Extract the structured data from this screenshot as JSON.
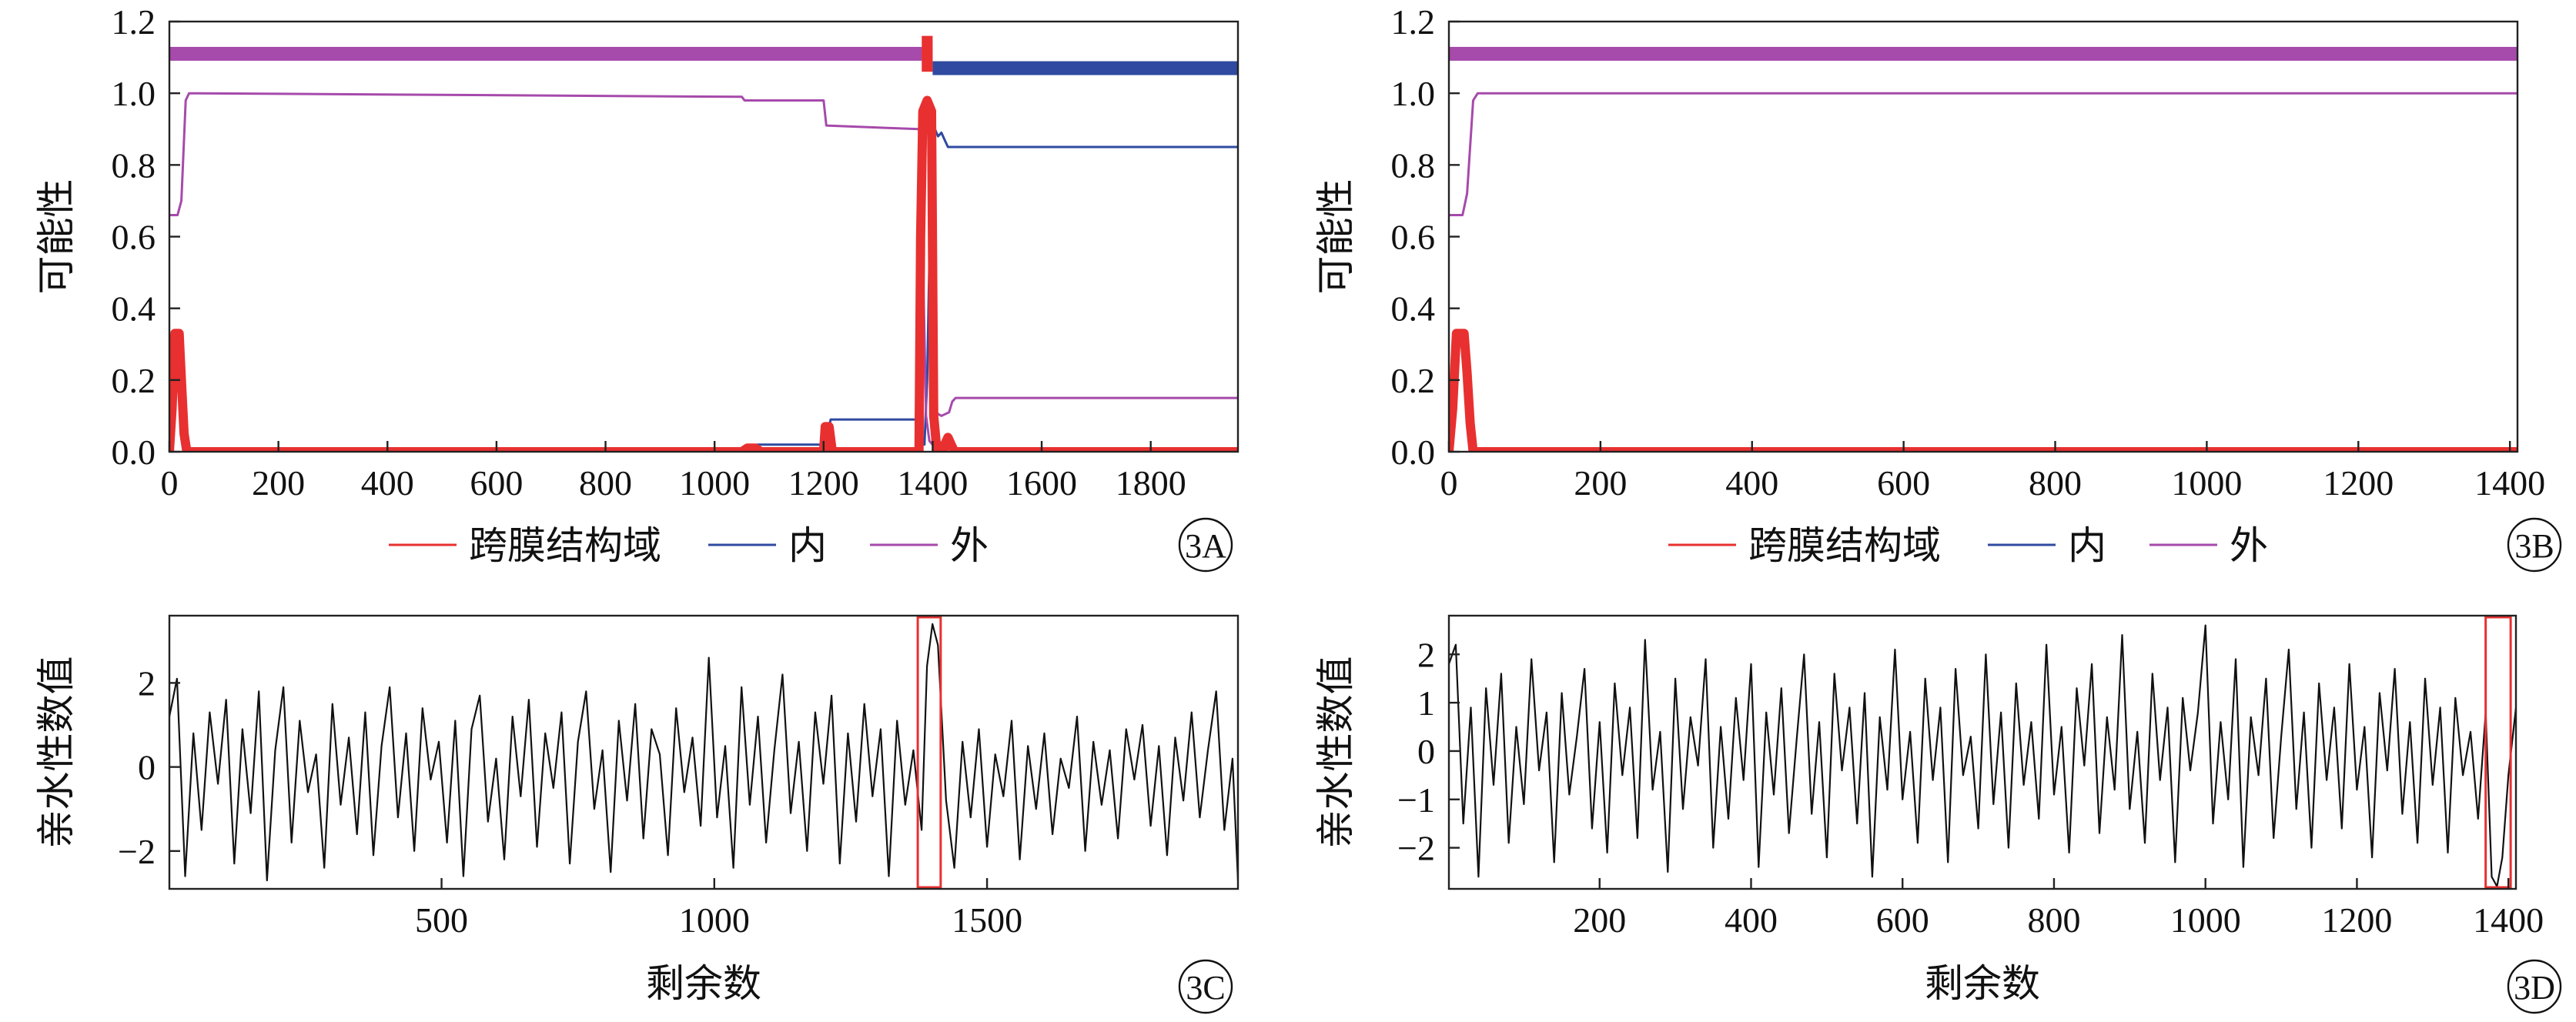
{
  "chart_data": [
    {
      "panel": "3A",
      "type": "line",
      "ylabel": "可能性",
      "xlabel": "",
      "xlim": [
        0,
        1960
      ],
      "ylim": [
        0,
        1.2
      ],
      "xticks": [
        0,
        200,
        400,
        600,
        800,
        1000,
        1200,
        1400,
        1600,
        1800
      ],
      "yticks": [
        "0.0",
        "0.2",
        "0.4",
        "0.6",
        "0.8",
        "1.0",
        "1.2"
      ],
      "legend": [
        "跨膜结构域",
        "内",
        "外"
      ],
      "legend_placement": "bottom-center",
      "topology_bars": [
        {
          "color": "#a64aab",
          "from": 0,
          "to": 1380,
          "y": 1.11
        },
        {
          "color": "#e83030",
          "from": 1380,
          "to": 1400,
          "y": 1.11
        },
        {
          "color": "#2f4aa0",
          "from": 1400,
          "to": 1960,
          "y": 1.07
        }
      ],
      "series": [
        {
          "name": "跨膜结构域",
          "color": "#e83030",
          "thick": true,
          "x": [
            0,
            5,
            10,
            14,
            18,
            22,
            27,
            32,
            40,
            1050,
            1060,
            1075,
            1085,
            1200,
            1203,
            1210,
            1216,
            1375,
            1378,
            1382,
            1390,
            1398,
            1402,
            1408,
            1420,
            1422,
            1428,
            1434,
            1440,
            1960
          ],
          "y": [
            0,
            0.12,
            0.33,
            0.33,
            0.33,
            0.2,
            0.05,
            0,
            0,
            0,
            0.01,
            0.01,
            0,
            0,
            0.07,
            0.07,
            0,
            0,
            0.6,
            0.95,
            0.98,
            0.95,
            0.1,
            0,
            0,
            0.02,
            0.04,
            0.02,
            0,
            0
          ]
        },
        {
          "name": "内",
          "color": "#2f4aa0",
          "thick": false,
          "x": [
            0,
            5,
            8,
            14,
            20,
            28,
            35,
            1050,
            1065,
            1075,
            1078,
            1200,
            1210,
            1213,
            1370,
            1375,
            1385,
            1390,
            1396,
            1400,
            1404,
            1410,
            1416,
            1422,
            1428,
            1440,
            1960
          ],
          "y": [
            0.02,
            0.03,
            0.3,
            0.33,
            0.25,
            0.05,
            0,
            0,
            0.005,
            0.01,
            0.02,
            0.02,
            0.07,
            0.09,
            0.09,
            0.08,
            0.02,
            0.2,
            0.7,
            0.9,
            0.9,
            0.88,
            0.89,
            0.87,
            0.85,
            0.85,
            0.85
          ]
        },
        {
          "name": "外",
          "color": "#a64aab",
          "thick": false,
          "x": [
            0,
            15,
            22,
            30,
            36,
            50,
            1050,
            1055,
            1200,
            1205,
            1375,
            1380,
            1388,
            1394,
            1400,
            1405,
            1416,
            1430,
            1436,
            1442,
            1960
          ],
          "y": [
            0.66,
            0.66,
            0.7,
            0.98,
            1.0,
            1.0,
            0.99,
            0.98,
            0.98,
            0.91,
            0.9,
            0.7,
            0.1,
            0.03,
            0.02,
            0.11,
            0.1,
            0.11,
            0.14,
            0.15,
            0.15
          ]
        }
      ]
    },
    {
      "panel": "3B",
      "type": "line",
      "ylabel": "可能性",
      "xlabel": "",
      "xlim": [
        0,
        1410
      ],
      "ylim": [
        0,
        1.2
      ],
      "xticks": [
        0,
        200,
        400,
        600,
        800,
        1000,
        1200,
        1400
      ],
      "yticks": [
        "0.0",
        "0.2",
        "0.4",
        "0.6",
        "0.8",
        "1.0",
        "1.2"
      ],
      "legend": [
        "跨膜结构域",
        "内",
        "外"
      ],
      "legend_placement": "bottom-center",
      "topology_bars": [
        {
          "color": "#a64aab",
          "from": 0,
          "to": 1410,
          "y": 1.11
        }
      ],
      "series": [
        {
          "name": "跨膜结构域",
          "color": "#e83030",
          "thick": true,
          "x": [
            0,
            5,
            10,
            15,
            20,
            24,
            28,
            32,
            40,
            1410
          ],
          "y": [
            0,
            0.12,
            0.33,
            0.33,
            0.33,
            0.22,
            0.08,
            0,
            0,
            0
          ]
        },
        {
          "name": "内",
          "color": "#2f4aa0",
          "thick": false,
          "x": [
            0,
            5,
            8,
            14,
            20,
            26,
            33,
            40,
            1410
          ],
          "y": [
            0.02,
            0.03,
            0.3,
            0.33,
            0.28,
            0.1,
            0.01,
            0,
            0
          ]
        },
        {
          "name": "外",
          "color": "#a64aab",
          "thick": false,
          "x": [
            0,
            18,
            24,
            32,
            38,
            60,
            1410
          ],
          "y": [
            0.66,
            0.66,
            0.72,
            0.98,
            1.0,
            1.0,
            1.0
          ]
        }
      ]
    },
    {
      "panel": "3C",
      "type": "line",
      "ylabel": "亲水性数值",
      "xlabel": "剩余数",
      "xlim": [
        1,
        1960
      ],
      "ylim": [
        -2.9,
        3.6
      ],
      "xticks": [
        500,
        1000,
        1500
      ],
      "yticks": [
        -2,
        0,
        2
      ],
      "highlight_box": {
        "x": [
          1373,
          1415
        ],
        "y": [
          -2.9,
          3.6
        ],
        "color": "#e83030"
      },
      "series": [
        {
          "name": "",
          "color": "#111111",
          "x": [
            1,
            15,
            30,
            45,
            60,
            75,
            90,
            105,
            120,
            135,
            150,
            165,
            180,
            195,
            210,
            225,
            240,
            255,
            270,
            285,
            300,
            315,
            330,
            345,
            360,
            375,
            390,
            405,
            420,
            435,
            450,
            465,
            480,
            495,
            510,
            525,
            540,
            555,
            570,
            585,
            600,
            615,
            630,
            645,
            660,
            675,
            690,
            705,
            720,
            735,
            750,
            765,
            780,
            795,
            810,
            825,
            840,
            855,
            870,
            885,
            900,
            915,
            930,
            945,
            960,
            975,
            990,
            1005,
            1020,
            1035,
            1050,
            1065,
            1080,
            1095,
            1110,
            1125,
            1140,
            1155,
            1170,
            1185,
            1200,
            1215,
            1230,
            1245,
            1260,
            1275,
            1290,
            1305,
            1320,
            1335,
            1350,
            1365,
            1380,
            1390,
            1400,
            1410,
            1425,
            1440,
            1455,
            1470,
            1485,
            1500,
            1515,
            1530,
            1545,
            1560,
            1575,
            1590,
            1605,
            1620,
            1635,
            1650,
            1665,
            1680,
            1695,
            1710,
            1725,
            1740,
            1755,
            1770,
            1785,
            1800,
            1815,
            1830,
            1845,
            1860,
            1875,
            1890,
            1905,
            1920,
            1935,
            1950,
            1960
          ],
          "y": [
            1.2,
            2.1,
            -2.6,
            0.8,
            -1.5,
            1.3,
            -0.4,
            1.6,
            -2.3,
            0.9,
            -1.1,
            1.8,
            -2.7,
            0.4,
            1.9,
            -1.8,
            1.1,
            -0.6,
            0.3,
            -2.4,
            1.5,
            -0.9,
            0.7,
            -1.6,
            1.3,
            -2.1,
            0.5,
            1.9,
            -1.2,
            0.8,
            -2.0,
            1.4,
            -0.3,
            0.6,
            -1.8,
            1.1,
            -2.6,
            0.9,
            1.7,
            -1.3,
            0.2,
            -2.2,
            1.2,
            -0.7,
            1.6,
            -1.9,
            0.8,
            -0.5,
            1.3,
            -2.3,
            0.6,
            1.8,
            -1.0,
            0.4,
            -2.5,
            1.1,
            -0.8,
            1.5,
            -1.7,
            0.9,
            0.3,
            -2.1,
            1.4,
            -0.6,
            0.7,
            -1.4,
            2.6,
            -1.2,
            0.5,
            -2.4,
            1.9,
            -0.9,
            1.2,
            -1.8,
            0.4,
            2.2,
            -1.1,
            0.6,
            -2.0,
            1.3,
            -0.4,
            1.7,
            -2.3,
            0.8,
            -1.3,
            1.5,
            -0.7,
            0.9,
            -2.6,
            1.1,
            -0.9,
            0.4,
            -1.5,
            2.4,
            3.4,
            2.9,
            -0.8,
            -2.4,
            0.6,
            -1.2,
            0.9,
            -1.9,
            0.3,
            -0.7,
            1.1,
            -2.2,
            0.5,
            -1.0,
            0.8,
            -1.6,
            0.2,
            -0.5,
            1.2,
            -2.0,
            0.6,
            -0.9,
            0.4,
            -1.7,
            0.9,
            -0.3,
            1.0,
            -1.4,
            0.5,
            -2.1,
            0.7,
            -0.8,
            1.3,
            -1.2,
            0.4,
            1.8,
            -1.5,
            0.2,
            -2.7
          ]
        }
      ]
    },
    {
      "panel": "3D",
      "type": "line",
      "ylabel": "亲水性数值",
      "xlabel": "剩余数",
      "xlim": [
        1,
        1410
      ],
      "ylim": [
        -2.85,
        2.8
      ],
      "xticks": [
        200,
        400,
        600,
        800,
        1000,
        1200,
        1400
      ],
      "yticks": [
        -2,
        -1,
        0,
        1,
        2
      ],
      "highlight_box": {
        "x": [
          1370,
          1403
        ],
        "y": [
          -2.85,
          2.8
        ],
        "color": "#e83030"
      },
      "series": [
        {
          "name": "",
          "color": "#111111",
          "x": [
            1,
            10,
            20,
            30,
            40,
            50,
            60,
            70,
            80,
            90,
            100,
            110,
            120,
            130,
            140,
            150,
            160,
            170,
            180,
            190,
            200,
            210,
            220,
            230,
            240,
            250,
            260,
            270,
            280,
            290,
            300,
            310,
            320,
            330,
            340,
            350,
            360,
            370,
            380,
            390,
            400,
            410,
            420,
            430,
            440,
            450,
            460,
            470,
            480,
            490,
            500,
            510,
            520,
            530,
            540,
            550,
            560,
            570,
            580,
            590,
            600,
            610,
            620,
            630,
            640,
            650,
            660,
            670,
            680,
            690,
            700,
            710,
            720,
            730,
            740,
            750,
            760,
            770,
            780,
            790,
            800,
            810,
            820,
            830,
            840,
            850,
            860,
            870,
            880,
            890,
            900,
            910,
            920,
            930,
            940,
            950,
            960,
            970,
            980,
            990,
            1000,
            1010,
            1020,
            1030,
            1040,
            1050,
            1060,
            1070,
            1080,
            1090,
            1100,
            1110,
            1120,
            1130,
            1140,
            1150,
            1160,
            1170,
            1180,
            1190,
            1200,
            1210,
            1220,
            1230,
            1240,
            1250,
            1260,
            1270,
            1280,
            1290,
            1300,
            1310,
            1320,
            1330,
            1340,
            1350,
            1360,
            1370,
            1378,
            1385,
            1392,
            1400,
            1410
          ],
          "y": [
            1.8,
            2.2,
            -1.5,
            0.9,
            -2.6,
            1.3,
            -0.7,
            1.6,
            -1.9,
            0.5,
            -1.1,
            1.9,
            -0.4,
            0.8,
            -2.3,
            1.2,
            -0.9,
            0.3,
            1.7,
            -1.6,
            0.6,
            -2.1,
            1.4,
            -0.5,
            0.9,
            -1.8,
            2.3,
            -0.8,
            0.4,
            -2.5,
            1.5,
            -1.2,
            0.7,
            -0.3,
            1.9,
            -2.0,
            0.5,
            -1.4,
            1.1,
            -0.6,
            1.8,
            -2.4,
            0.8,
            -0.9,
            1.3,
            -1.7,
            0.2,
            2.0,
            -1.3,
            0.6,
            -2.2,
            1.6,
            -0.4,
            0.9,
            -1.5,
            1.2,
            -2.6,
            0.7,
            -0.8,
            2.1,
            -1.0,
            0.4,
            -1.9,
            1.5,
            -0.6,
            0.9,
            -2.3,
            1.7,
            -0.5,
            0.3,
            -1.6,
            2.0,
            -1.1,
            0.8,
            -2.0,
            1.4,
            -0.7,
            0.6,
            -1.4,
            2.2,
            -0.9,
            0.5,
            -2.1,
            1.3,
            -0.3,
            1.8,
            -1.7,
            0.7,
            -0.8,
            2.4,
            -1.2,
            0.4,
            -1.9,
            1.6,
            -0.6,
            0.9,
            -2.3,
            1.1,
            -0.4,
            0.8,
            2.6,
            -1.5,
            0.6,
            -1.0,
            1.9,
            -2.4,
            0.7,
            -0.5,
            1.5,
            -1.8,
            0.3,
            2.1,
            -1.2,
            0.8,
            -2.0,
            1.4,
            -0.6,
            0.9,
            -1.6,
            1.8,
            -0.8,
            0.5,
            -2.2,
            1.2,
            -0.4,
            1.7,
            -1.3,
            0.6,
            -1.9,
            1.5,
            -0.7,
            0.9,
            -2.1,
            1.1,
            -0.5,
            0.4,
            -1.4,
            0.8,
            -2.6,
            -2.8,
            -2.2,
            -0.5,
            0.9
          ]
        }
      ]
    }
  ],
  "panels": {
    "a": {
      "tag": "3A",
      "legend": [
        "跨膜结构域",
        "内",
        "外"
      ]
    },
    "b": {
      "tag": "3B",
      "legend": [
        "跨膜结构域",
        "内",
        "外"
      ]
    },
    "c": {
      "tag": "3C"
    },
    "d": {
      "tag": "3D"
    }
  }
}
